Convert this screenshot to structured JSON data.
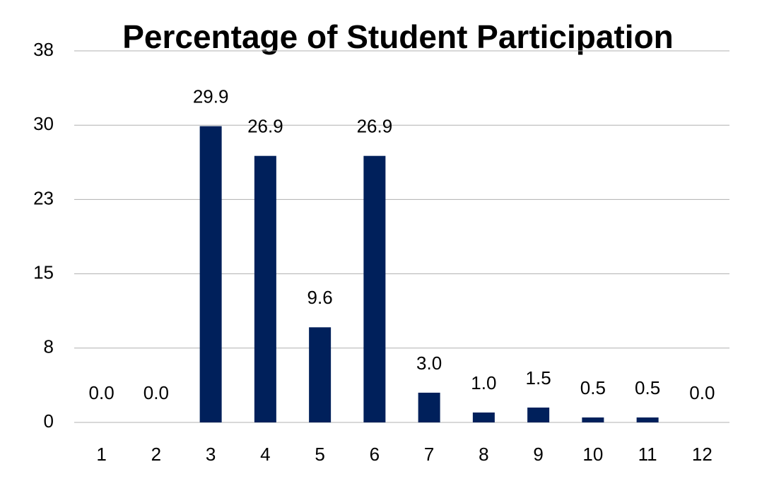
{
  "chart_data": {
    "type": "bar",
    "title": "Percentage of Student Participation",
    "categories": [
      "1",
      "2",
      "3",
      "4",
      "5",
      "6",
      "7",
      "8",
      "9",
      "10",
      "11",
      "12"
    ],
    "values": [
      0,
      0,
      29.9,
      26.9,
      9.6,
      26.9,
      3.0,
      1.0,
      1.5,
      0.5,
      0.5,
      0
    ],
    "value_labels": [
      "0.0",
      "0.0",
      "29.9",
      "26.9",
      "9.6",
      "26.9",
      "3.0",
      "1.0",
      "1.5",
      "0.5",
      "0.5",
      "0.0"
    ],
    "color": "#00205b",
    "ylim": [
      0,
      37.5
    ],
    "yticks": [
      0,
      {
        "value": 7.5,
        "label": "8"
      },
      15,
      {
        "value": 22.5,
        "label": "23"
      },
      30,
      {
        "value": 37.5,
        "label": "38"
      }
    ],
    "grid": true
  }
}
